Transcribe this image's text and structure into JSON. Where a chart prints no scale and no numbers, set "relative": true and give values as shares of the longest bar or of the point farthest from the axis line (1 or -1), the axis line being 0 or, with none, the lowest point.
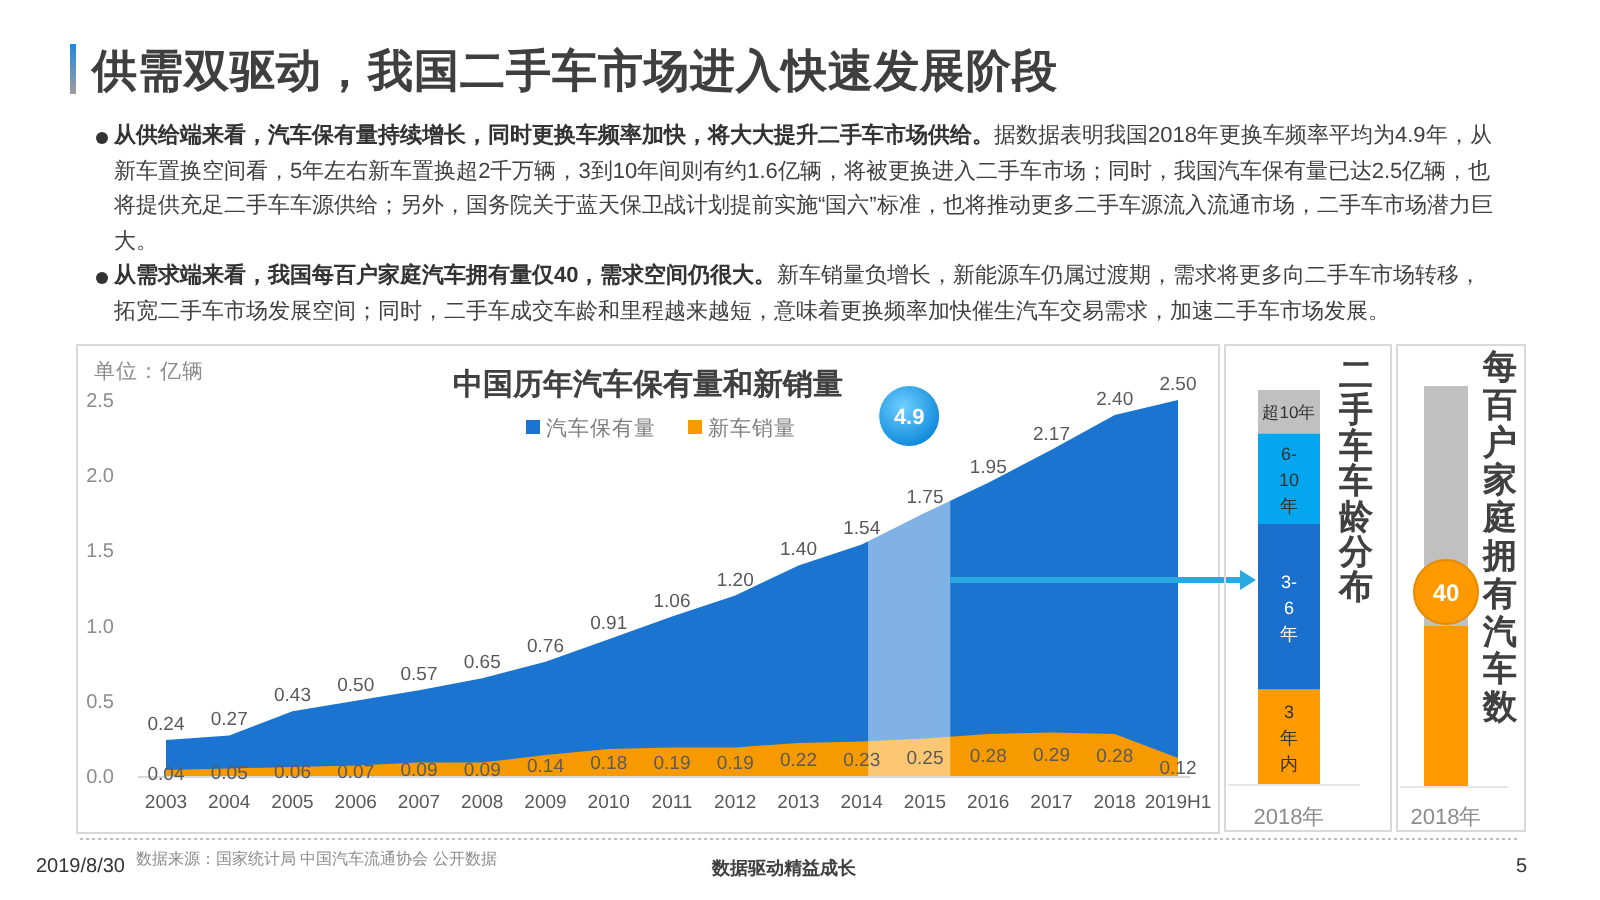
{
  "chart_data": [
    {
      "type": "other",
      "title": "供需双驱动，我国二手车市场进入快速发展阶段",
      "annotations": [
        "从供给端来看，汽车保有量持续增长，同时更换车频率加快，将大大提升二手车市场供给。据数据表明我国2018年更换车频率平均为4.9年，从新车置换空间看，5年左右新车置换超2千万辆，3到10年间则有约1.6亿辆，将被更换进入二手车市场；同时，我国汽车保有量已达2.5亿辆，也将提供充足二手车车源供给；另外，国务院关于蓝天保卫战计划提前实施“国六”标准，也将推动更多二手车源流入流通市场，二手车市场潜力巨大。",
        "从需求端来看，我国每百户家庭汽车拥有量仅40，需求空间仍很大。新车销量负增长，新能源车仍属过渡期，需求将更多向二手车市场转移，拓宽二手车市场发展空间；同时，二手车成交车龄和里程越来越短，意味着更换频率加快催生汽车交易需求，加速二手车市场发展。"
      ]
    },
    {
      "type": "area",
      "title": "中国历年汽车保有量和新销量",
      "ylabel": "单位：亿辆",
      "categories": [
        "2003",
        "2004",
        "2005",
        "2006",
        "2007",
        "2008",
        "2009",
        "2010",
        "2011",
        "2012",
        "2013",
        "2014",
        "2015",
        "2016",
        "2017",
        "2018",
        "2019H1"
      ],
      "series": [
        {
          "name": "汽车保有量",
          "color": "#1b74cf",
          "values": [
            0.24,
            0.27,
            0.43,
            0.5,
            0.57,
            0.65,
            0.76,
            0.91,
            1.06,
            1.2,
            1.4,
            1.54,
            1.75,
            1.95,
            2.17,
            2.4,
            2.5
          ],
          "value_labels": [
            "0.24",
            "0.27",
            "0.43",
            "0.50",
            "0.57",
            "0.65",
            "0.76",
            "0.91",
            "1.06",
            "1.20",
            "1.40",
            "1.54",
            "1.75",
            "1.95",
            "2.17",
            "2.40",
            "2.50"
          ]
        },
        {
          "name": "新车销量",
          "color": "#f79a00",
          "values": [
            0.04,
            0.05,
            0.06,
            0.07,
            0.09,
            0.09,
            0.14,
            0.18,
            0.19,
            0.19,
            0.22,
            0.23,
            0.25,
            0.28,
            0.29,
            0.28,
            0.12
          ],
          "value_labels": [
            "0.04",
            "0.05",
            "0.06",
            "0.07",
            "0.09",
            "0.09",
            "0.14",
            "0.18",
            "0.19",
            "0.19",
            "0.22",
            "0.23",
            "0.25",
            "0.28",
            "0.29",
            "0.28",
            "0.12"
          ]
        }
      ],
      "ylim": [
        0,
        2.5
      ],
      "yticks": [
        {
          "value": 0,
          "label": "0.0"
        },
        0.5,
        {
          "value": 1,
          "label": "1.0"
        },
        1.5,
        {
          "value": 2,
          "label": "2.0"
        },
        2.5
      ],
      "legend": "top",
      "bands": [
        {
          "axis": "x",
          "from": "2014",
          "to": "2015",
          "label": "4.9",
          "color": "#ffffff"
        }
      ]
    },
    {
      "type": "bar",
      "title": "二手车车龄分布",
      "categories": [
        "2018年"
      ],
      "stacked": true,
      "relative": true,
      "series": [
        {
          "name": "3年内",
          "color": "#ff9a00",
          "values": [
            0.24
          ]
        },
        {
          "name": "3-6年",
          "color": "#1b6fcc",
          "values": [
            0.42
          ]
        },
        {
          "name": "6-10年",
          "color": "#03a6ef",
          "values": [
            0.23
          ]
        },
        {
          "name": "超10年",
          "color": "#c0c0c0",
          "values": [
            0.11
          ]
        }
      ]
    },
    {
      "type": "bar",
      "title": "每百户家庭拥有汽车数",
      "categories": [
        "2018年"
      ],
      "series": [
        {
          "color": "#ff9900",
          "values": [
            40
          ]
        }
      ],
      "data_labels": true,
      "ylim": [
        0,
        100
      ]
    },
    {
      "type": "other",
      "annotations": [
        "2019/8/30",
        "数据来源：国家统计局 中国汽车流通协会 公开数据",
        "数据驱动精益成长",
        "5"
      ]
    }
  ]
}
